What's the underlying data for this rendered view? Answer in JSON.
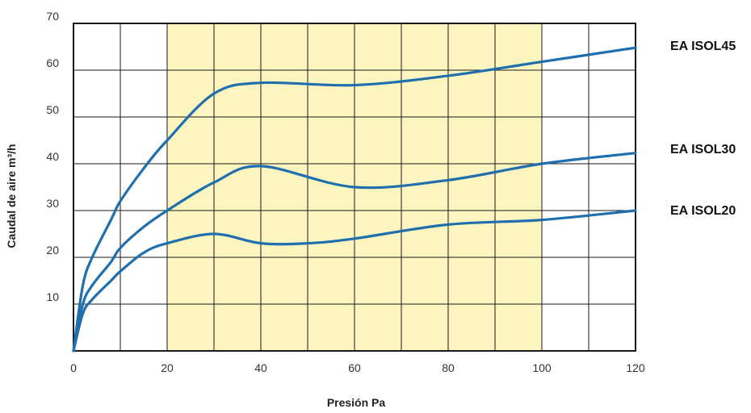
{
  "chart_data": {
    "type": "line",
    "xlabel": "Presión Pa",
    "ylabel": "Caudal de aire m³/h",
    "xlim": [
      0,
      120
    ],
    "ylim": [
      0,
      70
    ],
    "xticks": [
      0,
      20,
      40,
      60,
      80,
      100,
      120
    ],
    "yticks": [
      10,
      20,
      30,
      40,
      50,
      60,
      70
    ],
    "grid": true,
    "highlight_band": {
      "x_from": 20,
      "x_to": 100,
      "color": "#fdf5c0"
    },
    "line_color": "#1f6fae",
    "series": [
      {
        "name": "EA ISOL45",
        "points": [
          [
            0,
            0
          ],
          [
            2,
            14
          ],
          [
            4,
            20
          ],
          [
            8,
            28
          ],
          [
            10,
            32
          ],
          [
            15,
            39
          ],
          [
            20,
            45
          ],
          [
            30,
            55
          ],
          [
            40,
            57.3
          ],
          [
            60,
            56.8
          ],
          [
            80,
            58.8
          ],
          [
            100,
            61.8
          ],
          [
            120,
            64.8
          ]
        ]
      },
      {
        "name": "EA ISOL30",
        "points": [
          [
            0,
            0
          ],
          [
            2,
            10
          ],
          [
            4,
            14
          ],
          [
            8,
            19
          ],
          [
            10,
            22
          ],
          [
            15,
            26.5
          ],
          [
            20,
            30
          ],
          [
            30,
            36
          ],
          [
            40,
            39.5
          ],
          [
            60,
            35
          ],
          [
            80,
            36.5
          ],
          [
            100,
            40
          ],
          [
            120,
            42.3
          ]
        ]
      },
      {
        "name": "EA ISOL20",
        "points": [
          [
            0,
            0
          ],
          [
            2,
            8
          ],
          [
            4,
            11
          ],
          [
            8,
            15
          ],
          [
            10,
            17
          ],
          [
            15,
            21
          ],
          [
            20,
            23
          ],
          [
            30,
            25
          ],
          [
            40,
            23
          ],
          [
            50,
            23
          ],
          [
            60,
            24
          ],
          [
            80,
            27
          ],
          [
            100,
            28
          ],
          [
            120,
            30
          ]
        ]
      }
    ]
  }
}
